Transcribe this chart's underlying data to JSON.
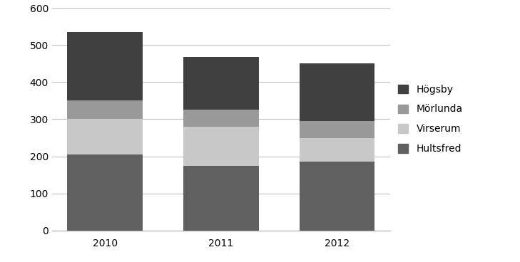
{
  "years": [
    "2010",
    "2011",
    "2012"
  ],
  "series": {
    "Hultsfred": [
      205,
      175,
      185
    ],
    "Virserum": [
      95,
      105,
      65
    ],
    "Mörlunda": [
      50,
      45,
      45
    ],
    "Högsby": [
      185,
      143,
      155
    ]
  },
  "colors": {
    "Hultsfred": "#606060",
    "Virserum": "#c8c8c8",
    "Mörlunda": "#999999",
    "Högsby": "#404040"
  },
  "ylim": [
    0,
    600
  ],
  "yticks": [
    0,
    100,
    200,
    300,
    400,
    500,
    600
  ],
  "legend_order": [
    "Högsby",
    "Mörlunda",
    "Virserum",
    "Hultsfred"
  ],
  "bar_width": 0.65,
  "background_color": "#ffffff",
  "grid_color": "#c0c0c0",
  "tick_fontsize": 10,
  "legend_fontsize": 10
}
